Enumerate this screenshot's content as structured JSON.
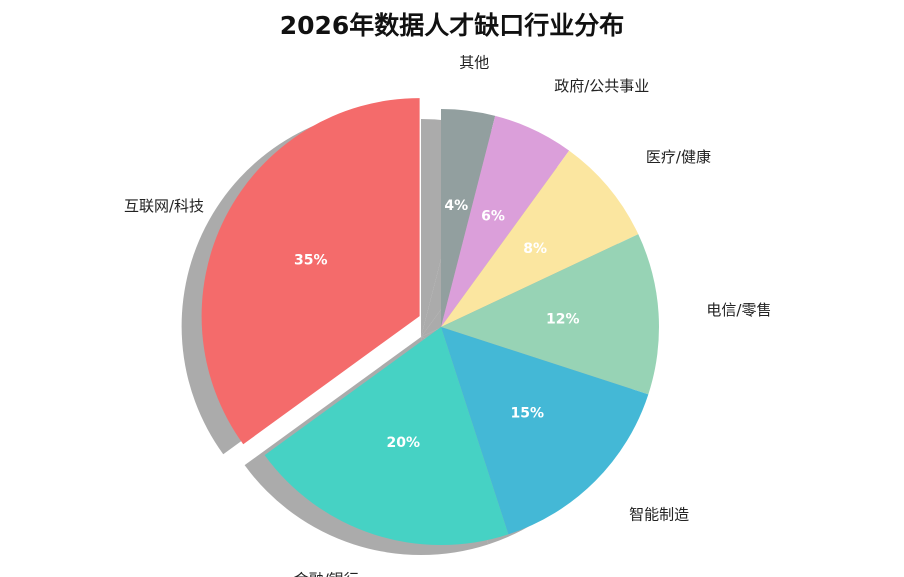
{
  "chart_data": {
    "type": "pie",
    "title": "2026年数据人才缺口行业分布",
    "categories": [
      "互联网/科技",
      "金融/银行",
      "智能制造",
      "电信/零售",
      "医疗/健康",
      "政府/公共事业",
      "其他"
    ],
    "values": [
      35,
      20,
      15,
      12,
      8,
      6,
      4
    ],
    "value_labels": [
      "35%",
      "20%",
      "15%",
      "12%",
      "8%",
      "6%",
      "4%"
    ],
    "colors": [
      "#F46B6B",
      "#46D2C4",
      "#44B8D6",
      "#97D3B5",
      "#FBE6A0",
      "#DB9FDA",
      "#929F9F"
    ],
    "exploded": [
      "互联网/科技"
    ],
    "start": "top, clockwise from 其他",
    "shadow": true,
    "legend": "none"
  }
}
